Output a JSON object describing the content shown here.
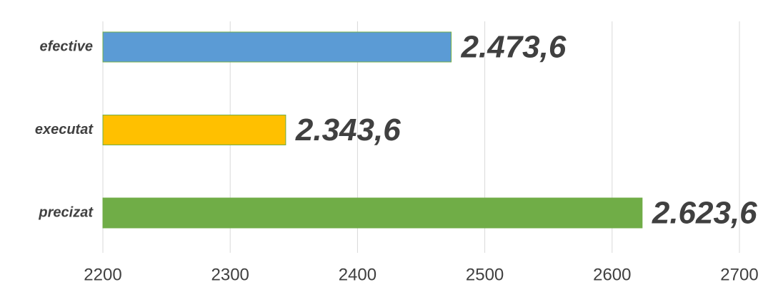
{
  "chart_data": {
    "type": "bar",
    "orientation": "horizontal",
    "categories": [
      "efective",
      "executat",
      "precizat"
    ],
    "values": [
      2473.6,
      2343.6,
      2623.6
    ],
    "value_labels": [
      "2.473,6",
      "2.343,6",
      "2.623,6"
    ],
    "colors": [
      "#5b9bd5",
      "#ffc000",
      "#70ad47"
    ],
    "xlim": [
      2200,
      2700
    ],
    "xticks": [
      2200,
      2300,
      2400,
      2500,
      2600,
      2700
    ],
    "grid": true
  }
}
